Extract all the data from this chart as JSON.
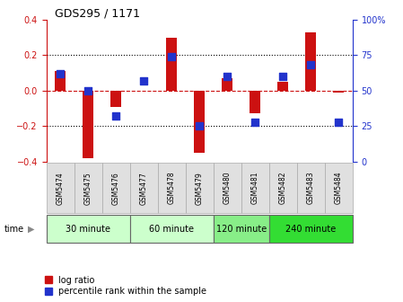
{
  "title": "GDS295 / 1171",
  "samples": [
    "GSM5474",
    "GSM5475",
    "GSM5476",
    "GSM5477",
    "GSM5478",
    "GSM5479",
    "GSM5480",
    "GSM5481",
    "GSM5482",
    "GSM5483",
    "GSM5484"
  ],
  "log_ratio": [
    0.11,
    -0.38,
    -0.09,
    0.0,
    0.3,
    -0.35,
    0.07,
    -0.13,
    0.05,
    0.33,
    -0.01
  ],
  "percentile": [
    62,
    50,
    32,
    57,
    74,
    25,
    60,
    28,
    60,
    68,
    28
  ],
  "ylim": [
    -0.4,
    0.4
  ],
  "ylim_right": [
    0,
    100
  ],
  "yticks_left": [
    -0.4,
    -0.2,
    0.0,
    0.2,
    0.4
  ],
  "yticks_right": [
    0,
    25,
    50,
    75,
    100
  ],
  "bar_color": "#cc1111",
  "dot_color": "#2233cc",
  "bg_color": "#ffffff",
  "zero_line_color": "#cc1111",
  "groups": [
    {
      "label": "30 minute",
      "start": 0,
      "end": 3,
      "color": "#ccffcc"
    },
    {
      "label": "60 minute",
      "start": 3,
      "end": 6,
      "color": "#ccffcc"
    },
    {
      "label": "120 minute",
      "start": 6,
      "end": 8,
      "color": "#88ee88"
    },
    {
      "label": "240 minute",
      "start": 8,
      "end": 11,
      "color": "#33dd33"
    }
  ],
  "xlabel_time": "time",
  "legend_log": "log ratio",
  "legend_pct": "percentile rank within the sample",
  "right_axis_color": "#2233cc",
  "left_axis_color": "#cc1111"
}
